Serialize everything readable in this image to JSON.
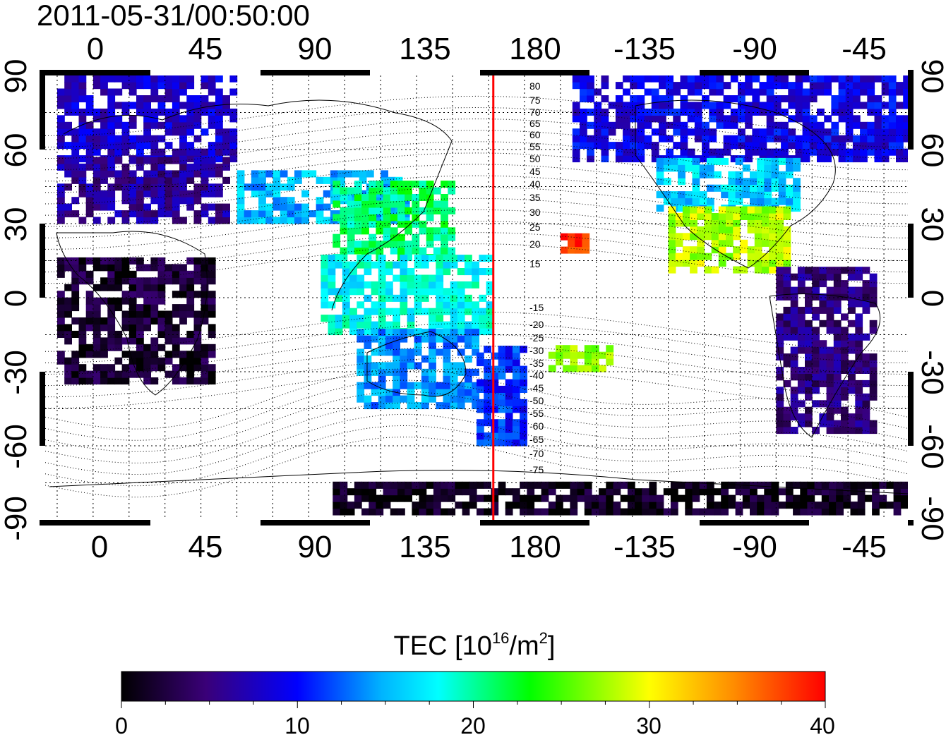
{
  "timestamp": "2011-05-31/00:50:00",
  "top_axis_labels": [
    "0",
    "45",
    "90",
    "135",
    "180",
    "-135",
    "-90",
    "-45"
  ],
  "bottom_axis_labels": [
    "0",
    "45",
    "90",
    "135",
    "180",
    "-135",
    "-90",
    "-45"
  ],
  "left_axis_labels": [
    "90",
    "60",
    "30",
    "0",
    "-30",
    "-60",
    "-90"
  ],
  "right_axis_labels": [
    "90",
    "60",
    "30",
    "0",
    "-30",
    "-60",
    "-90"
  ],
  "magnetic_latitude_labels_north": [
    "80",
    "75",
    "70",
    "65",
    "60",
    "55",
    "50",
    "45",
    "40",
    "35",
    "30",
    "25",
    "20",
    "15"
  ],
  "magnetic_latitude_labels_south": [
    "-15",
    "-20",
    "-25",
    "-30",
    "-35",
    "-40",
    "-45",
    "-50",
    "-55",
    "-60",
    "-65",
    "-70",
    "-75"
  ],
  "colorbar": {
    "title_prefix": "TEC  [10",
    "title_sup1": "16",
    "title_mid": "/m",
    "title_sup2": "2",
    "title_suffix": "]",
    "tick_labels": [
      "0",
      "10",
      "20",
      "30",
      "40"
    ],
    "min": 0,
    "max": 40
  },
  "colors": {
    "terminator_line": "#ff0000",
    "stops": [
      "#000000",
      "#3a0078",
      "#0000ff",
      "#00b4ff",
      "#00ffff",
      "#00ff00",
      "#ffff00",
      "#ff8c00",
      "#ff0000"
    ]
  },
  "chart_data": {
    "type": "heatmap",
    "title": "2011-05-31/00:50:00",
    "xlabel": "",
    "ylabel": "",
    "xlim": [
      -20,
      340
    ],
    "ylim": [
      -90,
      90
    ],
    "terminator_longitude": 167,
    "value_range": [
      0,
      40
    ],
    "regions": [
      {
        "lon_min": -15,
        "lon_max": 60,
        "lat_min": 55,
        "lat_max": 88,
        "tec": 8
      },
      {
        "lon_min": -15,
        "lon_max": 55,
        "lat_min": 30,
        "lat_max": 55,
        "tec": 6
      },
      {
        "lon_min": 60,
        "lon_max": 130,
        "lat_min": 30,
        "lat_max": 50,
        "tec": 15
      },
      {
        "lon_min": 100,
        "lon_max": 150,
        "lat_min": 15,
        "lat_max": 45,
        "tec": 21
      },
      {
        "lon_min": 95,
        "lon_max": 165,
        "lat_min": -15,
        "lat_max": 15,
        "tec": 18
      },
      {
        "lon_min": 110,
        "lon_max": 160,
        "lat_min": -45,
        "lat_max": -15,
        "tec": 14
      },
      {
        "lon_min": 160,
        "lon_max": 180,
        "lat_min": -60,
        "lat_max": -20,
        "tec": 11
      },
      {
        "lon_min": -15,
        "lon_max": 50,
        "lat_min": -35,
        "lat_max": 15,
        "tec": 2
      },
      {
        "lon_min": 195,
        "lon_max": 205,
        "lat_min": 18,
        "lat_max": 26,
        "tec": 38
      },
      {
        "lon_min": 190,
        "lon_max": 215,
        "lat_min": -30,
        "lat_max": -20,
        "tec": 27
      },
      {
        "lon_min": 200,
        "lon_max": 340,
        "lat_min": 55,
        "lat_max": 88,
        "tec": 9
      },
      {
        "lon_min": 235,
        "lon_max": 295,
        "lat_min": 35,
        "lat_max": 55,
        "tec": 16
      },
      {
        "lon_min": 240,
        "lon_max": 290,
        "lat_min": 10,
        "lat_max": 35,
        "tec": 28
      },
      {
        "lon_min": 285,
        "lon_max": 325,
        "lat_min": -55,
        "lat_max": 10,
        "tec": 5
      },
      {
        "lon_min": 100,
        "lon_max": 340,
        "lat_min": -88,
        "lat_max": -75,
        "tec": 1
      }
    ]
  }
}
